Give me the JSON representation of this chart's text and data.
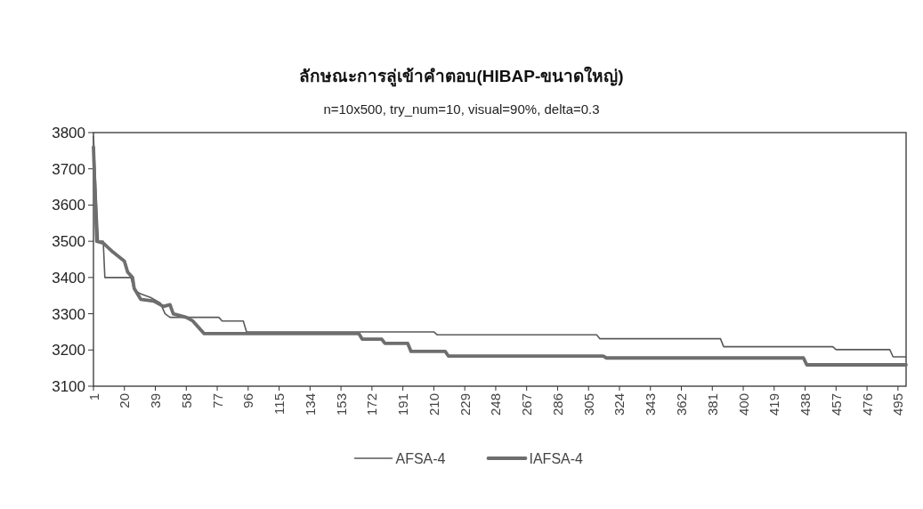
{
  "chart_data": {
    "type": "line",
    "title": "ลักษณะการลู่เข้าคำตอบ(HIBAP-ขนาดใหญ่)",
    "subtitle": "n=10x500, try_num=10, visual=90%, delta=0.3",
    "xlim": [
      1,
      500
    ],
    "xticks": [
      1,
      20,
      39,
      58,
      77,
      96,
      115,
      134,
      153,
      172,
      191,
      210,
      229,
      248,
      267,
      286,
      305,
      324,
      343,
      362,
      381,
      400,
      419,
      438,
      457,
      476,
      495
    ],
    "ylim": [
      3100,
      3800
    ],
    "yticks": [
      3100,
      3200,
      3300,
      3400,
      3500,
      3600,
      3700,
      3800
    ],
    "legend": "bottom",
    "series": [
      {
        "name": "AFSA-4",
        "color": "#5a5a5a",
        "x": [
          1,
          4,
          7,
          8,
          24,
          26,
          30,
          36,
          42,
          45,
          48,
          78,
          80,
          93,
          95,
          210,
          212,
          310,
          312,
          386,
          388,
          455,
          457,
          490,
          492,
          500
        ],
        "values": [
          3790,
          3500,
          3500,
          3400,
          3400,
          3365,
          3355,
          3345,
          3330,
          3300,
          3290,
          3290,
          3280,
          3280,
          3250,
          3250,
          3242,
          3242,
          3231,
          3231,
          3209,
          3209,
          3201,
          3201,
          3181,
          3181
        ]
      },
      {
        "name": "IAFSA-4",
        "color": "#6e6e6e",
        "x": [
          1,
          3,
          7,
          13,
          20,
          22,
          25,
          26,
          30,
          38,
          44,
          48,
          50,
          58,
          62,
          66,
          69,
          164,
          166,
          178,
          180,
          194,
          196,
          217,
          219,
          314,
          316,
          437,
          439,
          500
        ],
        "values": [
          3760,
          3500,
          3495,
          3470,
          3445,
          3415,
          3400,
          3370,
          3340,
          3335,
          3320,
          3325,
          3300,
          3290,
          3280,
          3260,
          3245,
          3245,
          3230,
          3230,
          3218,
          3218,
          3196,
          3196,
          3183,
          3183,
          3178,
          3178,
          3159,
          3159
        ]
      }
    ]
  }
}
